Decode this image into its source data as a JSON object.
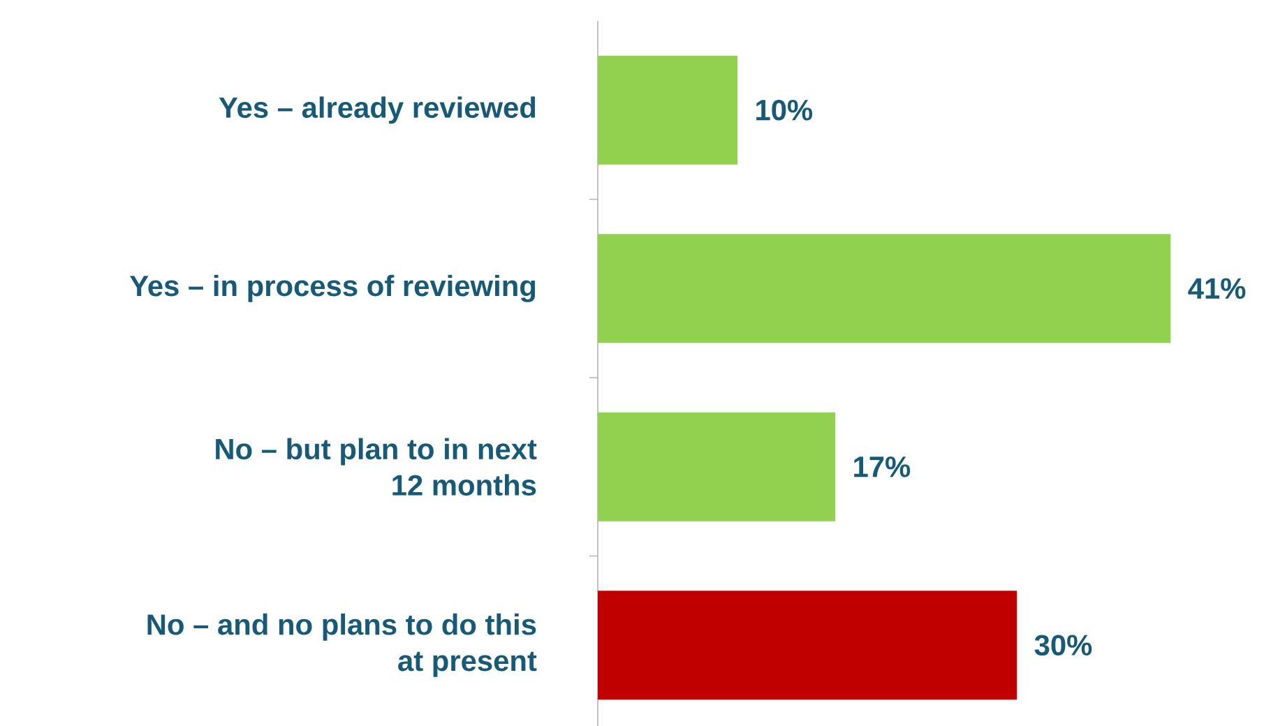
{
  "chart_data": {
    "type": "bar",
    "orientation": "horizontal",
    "categories": [
      "Yes – already reviewed",
      "Yes – in process of reviewing",
      "No – but plan to in next 12 months",
      "No – and no plans to do this at present"
    ],
    "values": [
      10,
      41,
      17,
      30
    ],
    "colors": [
      "#92d050",
      "#92d050",
      "#92d050",
      "#c00000"
    ],
    "value_labels": [
      "10%",
      "41%",
      "17%",
      "30%"
    ]
  }
}
